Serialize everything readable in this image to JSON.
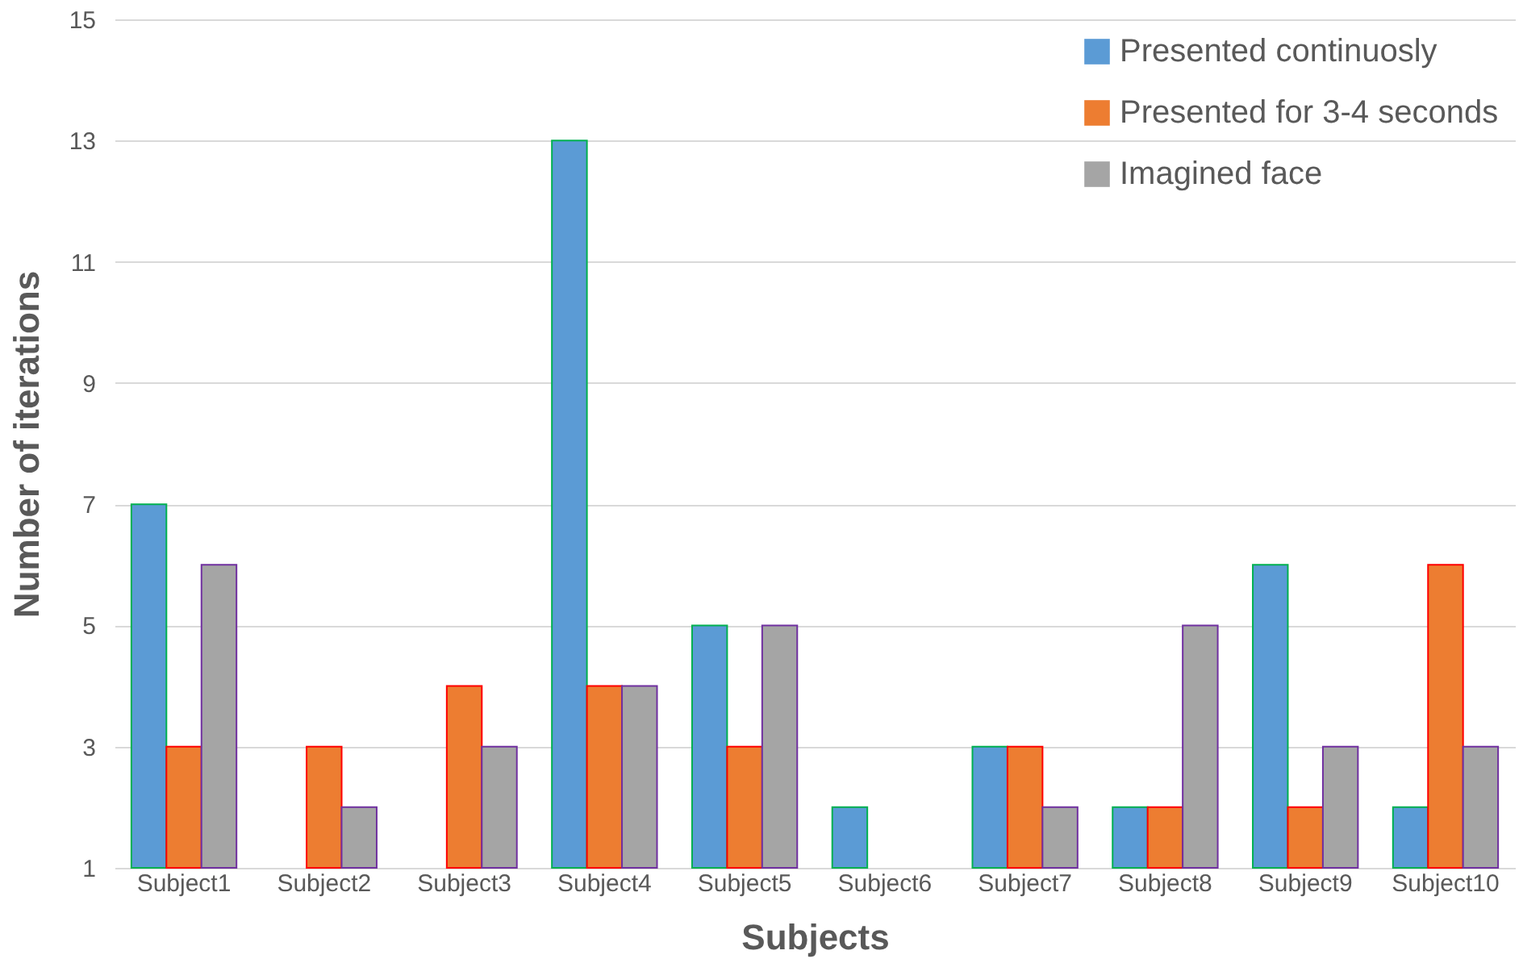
{
  "chart_data": {
    "type": "bar",
    "xlabel": "Subjects",
    "ylabel": "Number of iterations",
    "categories": [
      "Subject1",
      "Subject2",
      "Subject3",
      "Subject4",
      "Subject5",
      "Subject6",
      "Subject7",
      "Subject8",
      "Subject9",
      "Subject10"
    ],
    "series": [
      {
        "name": "Presented continuosly",
        "color": "#5b9bd5",
        "values": [
          7,
          null,
          null,
          13,
          5,
          2,
          3,
          2,
          6,
          2
        ]
      },
      {
        "name": "Presented for 3-4 seconds",
        "color": "#ed7d31",
        "values": [
          3,
          3,
          4,
          4,
          3,
          null,
          3,
          2,
          2,
          6
        ]
      },
      {
        "name": "Imagined face",
        "color": "#a5a5a5",
        "values": [
          6,
          2,
          3,
          4,
          5,
          null,
          2,
          5,
          3,
          3
        ]
      }
    ],
    "ylim": [
      1,
      15
    ],
    "yticks": [
      1,
      3,
      5,
      7,
      9,
      11,
      13,
      15
    ],
    "grid": "y",
    "legend": "top right"
  }
}
